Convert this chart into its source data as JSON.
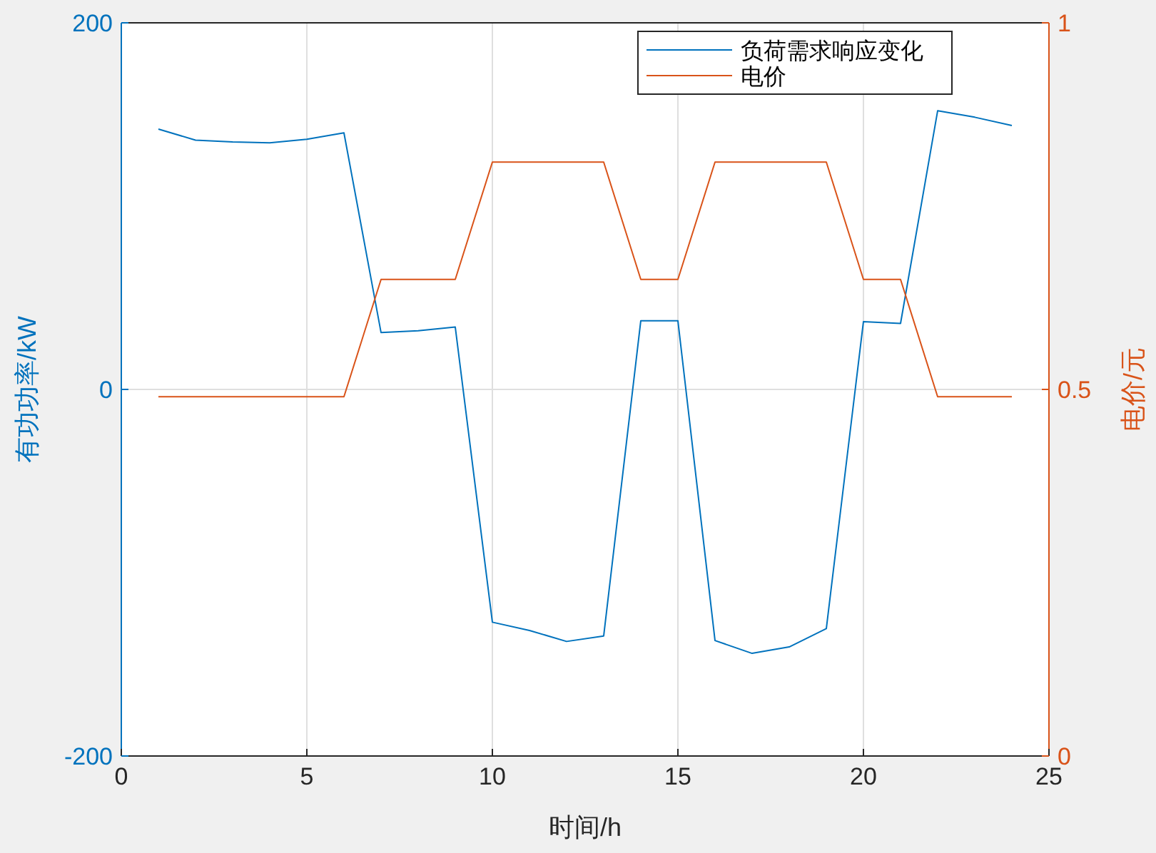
{
  "chart_data": {
    "type": "line",
    "xlabel": "时间/h",
    "ylabel": "有功功率/kW",
    "y2label": "电价/元",
    "x": [
      1,
      2,
      3,
      4,
      5,
      6,
      7,
      8,
      9,
      10,
      11,
      12,
      13,
      14,
      15,
      16,
      17,
      18,
      19,
      20,
      21,
      22,
      23,
      24
    ],
    "series": [
      {
        "name": "负荷需求响应变化",
        "color": "#0072bd",
        "values": [
          142,
          136,
          135,
          134.5,
          136.5,
          140,
          31,
          32,
          34,
          -127,
          -131.5,
          -137.5,
          -134.5,
          37.5,
          37.5,
          -137,
          -144,
          -140.5,
          -130.5,
          37,
          36,
          152,
          148.5,
          144
        ]
      },
      {
        "name": "电价",
        "color": "#d95319",
        "axis": "y2",
        "values": [
          0.49,
          0.49,
          0.49,
          0.49,
          0.49,
          0.49,
          0.65,
          0.65,
          0.65,
          0.81,
          0.81,
          0.81,
          0.81,
          0.65,
          0.65,
          0.81,
          0.81,
          0.81,
          0.81,
          0.65,
          0.65,
          0.49,
          0.49,
          0.49
        ]
      }
    ],
    "xlim": [
      0,
      25
    ],
    "xticks": [
      0,
      5,
      10,
      15,
      20,
      25
    ],
    "ylim": [
      -200,
      200
    ],
    "yticks": [
      -200,
      0,
      200
    ],
    "y2lim": [
      0,
      1
    ],
    "y2ticks": [
      0,
      0.5,
      1
    ],
    "grid": true,
    "legend": "top right",
    "marker": "none",
    "line_style": "solid"
  }
}
